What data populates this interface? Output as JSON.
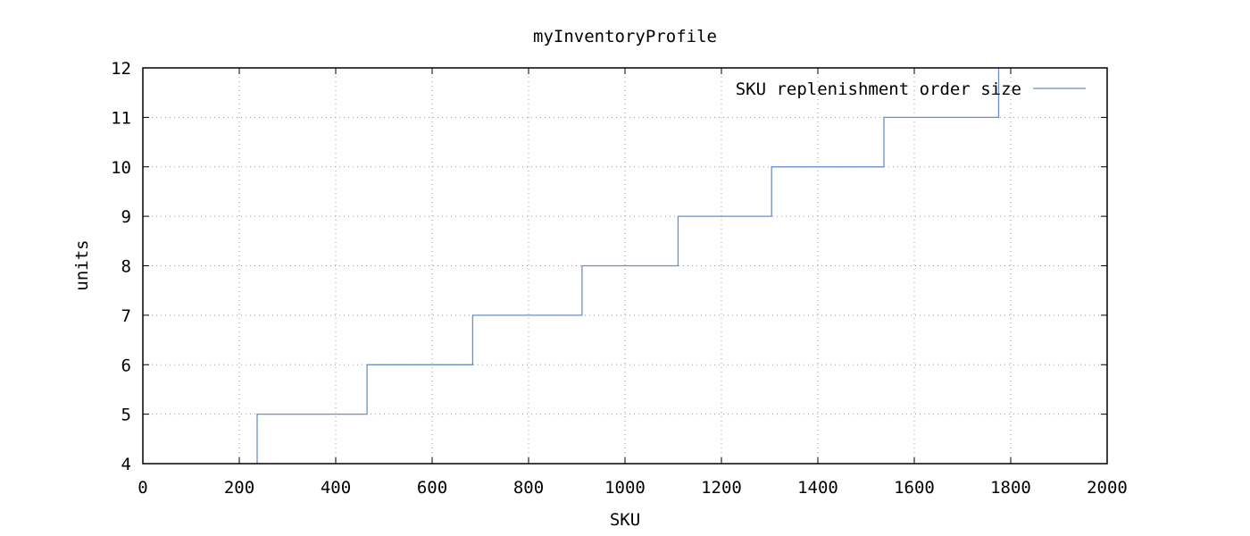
{
  "chart_data": {
    "type": "line",
    "title": "myInventoryProfile",
    "xlabel": "SKU",
    "ylabel": "units",
    "xlim": [
      0,
      2000
    ],
    "ylim": [
      4,
      12
    ],
    "x_ticks": [
      "0",
      "200",
      "400",
      "600",
      "800",
      "1000",
      "1200",
      "1400",
      "1600",
      "1800",
      "2000"
    ],
    "y_ticks": [
      "4",
      "5",
      "6",
      "7",
      "8",
      "9",
      "10",
      "11",
      "12"
    ],
    "grid": true,
    "legend_position": "top-right",
    "line_style": "steps",
    "series": [
      {
        "name": "SKU replenishment order size",
        "color": "#6b8fcb",
        "x": [
          237,
          237,
          465,
          465,
          684,
          684,
          911,
          911,
          1110,
          1110,
          1304,
          1304,
          1537,
          1537,
          1775,
          1775
        ],
        "y": [
          4,
          5,
          5,
          6,
          6,
          7,
          7,
          8,
          8,
          9,
          9,
          10,
          10,
          11,
          11,
          12
        ]
      }
    ]
  }
}
